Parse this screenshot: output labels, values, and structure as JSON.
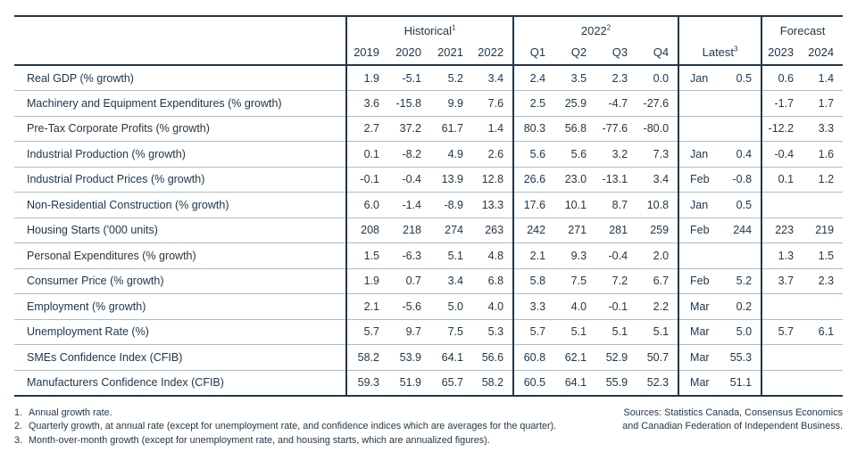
{
  "colors": {
    "text": "#223749",
    "line_dark": "#223749",
    "line_light": "#b3bac1",
    "background": "#ffffff"
  },
  "table": {
    "groups": [
      {
        "label": "Historical",
        "sup": "1",
        "cols": [
          "2019",
          "2020",
          "2021",
          "2022"
        ]
      },
      {
        "label": "2022",
        "sup": "2",
        "cols": [
          "Q1",
          "Q2",
          "Q3",
          "Q4"
        ]
      },
      {
        "label": "Latest",
        "sup": "3",
        "cols": []
      },
      {
        "label": "Forecast",
        "sup": "",
        "cols": [
          "2023",
          "2024"
        ]
      }
    ],
    "rows": [
      {
        "label": "Real GDP (% growth)",
        "historical": [
          "1.9",
          "-5.1",
          "5.2",
          "3.4"
        ],
        "q2022": [
          "2.4",
          "3.5",
          "2.3",
          "0.0"
        ],
        "latest_month": "Jan",
        "latest_value": "0.5",
        "forecast": [
          "0.6",
          "1.4"
        ]
      },
      {
        "label": "Machinery and Equipment Expenditures (% growth)",
        "historical": [
          "3.6",
          "-15.8",
          "9.9",
          "7.6"
        ],
        "q2022": [
          "2.5",
          "25.9",
          "-4.7",
          "-27.6"
        ],
        "latest_month": "",
        "latest_value": "",
        "forecast": [
          "-1.7",
          "1.7"
        ]
      },
      {
        "label": "Pre-Tax Corporate Profits (% growth)",
        "historical": [
          "2.7",
          "37.2",
          "61.7",
          "1.4"
        ],
        "q2022": [
          "80.3",
          "56.8",
          "-77.6",
          "-80.0"
        ],
        "latest_month": "",
        "latest_value": "",
        "forecast": [
          "-12.2",
          "3.3"
        ]
      },
      {
        "label": "Industrial Production (% growth)",
        "historical": [
          "0.1",
          "-8.2",
          "4.9",
          "2.6"
        ],
        "q2022": [
          "5.6",
          "5.6",
          "3.2",
          "7.3"
        ],
        "latest_month": "Jan",
        "latest_value": "0.4",
        "forecast": [
          "-0.4",
          "1.6"
        ]
      },
      {
        "label": "Industrial Product Prices (% growth)",
        "historical": [
          "-0.1",
          "-0.4",
          "13.9",
          "12.8"
        ],
        "q2022": [
          "26.6",
          "23.0",
          "-13.1",
          "3.4"
        ],
        "latest_month": "Feb",
        "latest_value": "-0.8",
        "forecast": [
          "0.1",
          "1.2"
        ]
      },
      {
        "label": "Non-Residential Construction (% growth)",
        "historical": [
          "6.0",
          "-1.4",
          "-8.9",
          "13.3"
        ],
        "q2022": [
          "17.6",
          "10.1",
          "8.7",
          "10.8"
        ],
        "latest_month": "Jan",
        "latest_value": "0.5",
        "forecast": [
          "",
          ""
        ]
      },
      {
        "label": "Housing Starts ('000 units)",
        "historical": [
          "208",
          "218",
          "274",
          "263"
        ],
        "q2022": [
          "242",
          "271",
          "281",
          "259"
        ],
        "latest_month": "Feb",
        "latest_value": "244",
        "forecast": [
          "223",
          "219"
        ]
      },
      {
        "label": "Personal Expenditures (% growth)",
        "historical": [
          "1.5",
          "-6.3",
          "5.1",
          "4.8"
        ],
        "q2022": [
          "2.1",
          "9.3",
          "-0.4",
          "2.0"
        ],
        "latest_month": "",
        "latest_value": "",
        "forecast": [
          "1.3",
          "1.5"
        ]
      },
      {
        "label": "Consumer Price (% growth)",
        "historical": [
          "1.9",
          "0.7",
          "3.4",
          "6.8"
        ],
        "q2022": [
          "5.8",
          "7.5",
          "7.2",
          "6.7"
        ],
        "latest_month": "Feb",
        "latest_value": "5.2",
        "forecast": [
          "3.7",
          "2.3"
        ]
      },
      {
        "label": "Employment (% growth)",
        "historical": [
          "2.1",
          "-5.6",
          "5.0",
          "4.0"
        ],
        "q2022": [
          "3.3",
          "4.0",
          "-0.1",
          "2.2"
        ],
        "latest_month": "Mar",
        "latest_value": "0.2",
        "forecast": [
          "",
          ""
        ]
      },
      {
        "label": "Unemployment Rate (%)",
        "historical": [
          "5.7",
          "9.7",
          "7.5",
          "5.3"
        ],
        "q2022": [
          "5.7",
          "5.1",
          "5.1",
          "5.1"
        ],
        "latest_month": "Mar",
        "latest_value": "5.0",
        "forecast": [
          "5.7",
          "6.1"
        ]
      },
      {
        "label": "SMEs Confidence Index (CFIB)",
        "historical": [
          "58.2",
          "53.9",
          "64.1",
          "56.6"
        ],
        "q2022": [
          "60.8",
          "62.1",
          "52.9",
          "50.7"
        ],
        "latest_month": "Mar",
        "latest_value": "55.3",
        "forecast": [
          "",
          ""
        ]
      },
      {
        "label": "Manufacturers Confidence Index (CFIB)",
        "historical": [
          "59.3",
          "51.9",
          "65.7",
          "58.2"
        ],
        "q2022": [
          "60.5",
          "64.1",
          "55.9",
          "52.3"
        ],
        "latest_month": "Mar",
        "latest_value": "51.1",
        "forecast": [
          "",
          ""
        ]
      }
    ]
  },
  "footnotes": [
    {
      "n": "1.",
      "text": "Annual growth rate."
    },
    {
      "n": "2.",
      "text": "Quarterly growth, at annual rate (except for unemployment rate, and confidence indices which are averages for the quarter)."
    },
    {
      "n": "3.",
      "text": "Month-over-month growth (except for unemployment rate, and housing starts, which are annualized figures)."
    }
  ],
  "sources": [
    "Sources: Statistics Canada, Consensus Economics",
    "and Canadian Federation of Independent Business."
  ]
}
